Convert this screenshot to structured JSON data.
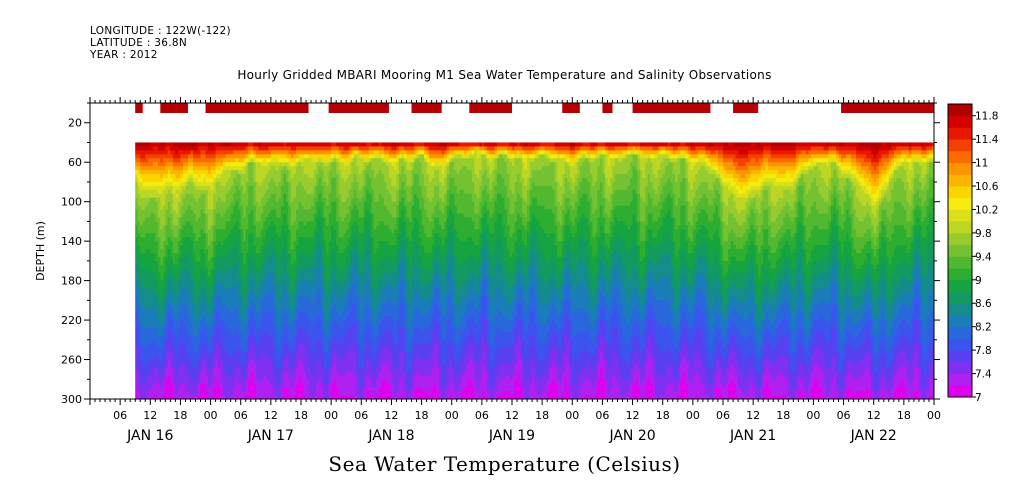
{
  "header": {
    "longitude": "LONGITUDE : 122W(-122)",
    "latitude": "LATITUDE : 36.8N",
    "year": "YEAR : 2012"
  },
  "chart_data": {
    "type": "heatmap",
    "title": "Hourly Gridded MBARI Mooring M1 Sea Water Temperature and Salinity Observations",
    "caption": "Sea Water Temperature (Celsius)",
    "ylabel": "DEPTH (m)",
    "xlabel": "",
    "ylim": [
      300,
      0
    ],
    "yticks": [
      20,
      60,
      100,
      140,
      180,
      220,
      260,
      300
    ],
    "xlim_hours": [
      0,
      168
    ],
    "xtick_labels": [
      "06",
      "12",
      "18",
      "00",
      "06",
      "12",
      "18",
      "00",
      "06",
      "12",
      "18",
      "00",
      "06",
      "12",
      "18",
      "00",
      "06",
      "12",
      "18",
      "00",
      "06",
      "12",
      "18",
      "00",
      "06",
      "12",
      "18",
      "00"
    ],
    "day_labels": [
      "JAN 16",
      "JAN 17",
      "JAN 18",
      "JAN 19",
      "JAN 20",
      "JAN 21",
      "JAN 22"
    ],
    "data_start_hour": 9,
    "data_top_depth": 40,
    "colorbar": {
      "levels": [
        7,
        7.2,
        7.4,
        7.6,
        7.8,
        8,
        8.2,
        8.4,
        8.6,
        8.8,
        9,
        9.2,
        9.4,
        9.6,
        9.8,
        10,
        10.2,
        10.4,
        10.6,
        10.8,
        11,
        11.2,
        11.4,
        11.6,
        11.8,
        12
      ],
      "labels": [
        "11.8",
        "11.4",
        "11",
        "10.6",
        "10.2",
        "9.8",
        "9.4",
        "9",
        "8.6",
        "8.2",
        "7.8",
        "7.4",
        "7"
      ],
      "colors": [
        "#e000f0",
        "#b020f0",
        "#8030f0",
        "#5840f0",
        "#3c54ee",
        "#2868dc",
        "#1a7cb8",
        "#148c8c",
        "#129a60",
        "#16a440",
        "#2eae30",
        "#52b830",
        "#74c232",
        "#98cc2e",
        "#bcd624",
        "#dce018",
        "#f4ec0c",
        "#fcd404",
        "#fcb400",
        "#fc9400",
        "#fa6c00",
        "#f44000",
        "#e81800",
        "#d40000",
        "#b00000"
      ]
    },
    "top_bars": [
      [
        9,
        10.5
      ],
      [
        14,
        19.5
      ],
      [
        23,
        43.5
      ],
      [
        47.5,
        59.5
      ],
      [
        64,
        70
      ],
      [
        75.5,
        84
      ],
      [
        94,
        97.5
      ],
      [
        102,
        104
      ],
      [
        108,
        123.5
      ],
      [
        128,
        133
      ],
      [
        149.5,
        168
      ]
    ],
    "surface_profile": [
      [
        9,
        80
      ],
      [
        11,
        95
      ],
      [
        13,
        98
      ],
      [
        16,
        88
      ],
      [
        18,
        92
      ],
      [
        20,
        80
      ],
      [
        22,
        92
      ],
      [
        25,
        83
      ],
      [
        27,
        68
      ],
      [
        30,
        72
      ],
      [
        32,
        60
      ],
      [
        35,
        65
      ],
      [
        37,
        60
      ],
      [
        40,
        68
      ],
      [
        43,
        58
      ],
      [
        47,
        62
      ],
      [
        49,
        58
      ],
      [
        51,
        66
      ],
      [
        53,
        52
      ],
      [
        55,
        63
      ],
      [
        57,
        55
      ],
      [
        60,
        64
      ],
      [
        62,
        57
      ],
      [
        64,
        62
      ],
      [
        66,
        52
      ],
      [
        68,
        68
      ],
      [
        71,
        64
      ],
      [
        73,
        54
      ],
      [
        75,
        58
      ],
      [
        77,
        49
      ],
      [
        80,
        60
      ],
      [
        82,
        52
      ],
      [
        84,
        58
      ],
      [
        86,
        56
      ],
      [
        88,
        60
      ],
      [
        90,
        52
      ],
      [
        92,
        60
      ],
      [
        94,
        58
      ],
      [
        96,
        65
      ],
      [
        98,
        55
      ],
      [
        100,
        60
      ],
      [
        102,
        52
      ],
      [
        104,
        58
      ],
      [
        106,
        56
      ],
      [
        108,
        52
      ],
      [
        110,
        56
      ],
      [
        112,
        58
      ],
      [
        114,
        52
      ],
      [
        116,
        60
      ],
      [
        118,
        56
      ],
      [
        120,
        64
      ],
      [
        122,
        60
      ],
      [
        124,
        72
      ],
      [
        126,
        85
      ],
      [
        128,
        95
      ],
      [
        130,
        102
      ],
      [
        132,
        98
      ],
      [
        134,
        88
      ],
      [
        136,
        84
      ],
      [
        138,
        88
      ],
      [
        140,
        85
      ],
      [
        142,
        72
      ],
      [
        144,
        66
      ],
      [
        146,
        62
      ],
      [
        148,
        60
      ],
      [
        150,
        75
      ],
      [
        152,
        80
      ],
      [
        154,
        92
      ],
      [
        156,
        110
      ],
      [
        158,
        98
      ],
      [
        160,
        72
      ],
      [
        162,
        62
      ],
      [
        164,
        60
      ],
      [
        166,
        62
      ],
      [
        168,
        60
      ]
    ]
  }
}
